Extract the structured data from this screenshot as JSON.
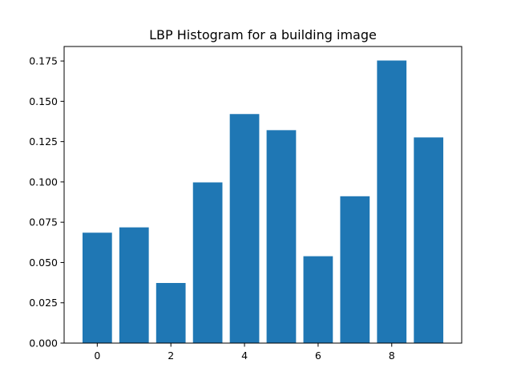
{
  "chart_data": {
    "type": "bar",
    "title": "LBP Histogram for a building image",
    "xlabel": "",
    "ylabel": "",
    "x": [
      0,
      1,
      2,
      3,
      4,
      5,
      6,
      7,
      8,
      9
    ],
    "values": [
      0.0685,
      0.0718,
      0.0373,
      0.0997,
      0.1421,
      0.1321,
      0.0539,
      0.0911,
      0.1753,
      0.1276
    ],
    "xlim": [
      -0.9,
      9.9
    ],
    "ylim": [
      0,
      0.184
    ],
    "xticks": [
      0,
      2,
      4,
      6,
      8
    ],
    "xtick_labels": [
      "0",
      "2",
      "4",
      "6",
      "8"
    ],
    "yticks": [
      0,
      0.025,
      0.05,
      0.075,
      0.1,
      0.125,
      0.15,
      0.175
    ],
    "ytick_labels": [
      "0.000",
      "0.025",
      "0.050",
      "0.075",
      "0.100",
      "0.125",
      "0.150",
      "0.175"
    ],
    "bar_color": "#1f77b4",
    "grid": false,
    "legend": "none"
  }
}
